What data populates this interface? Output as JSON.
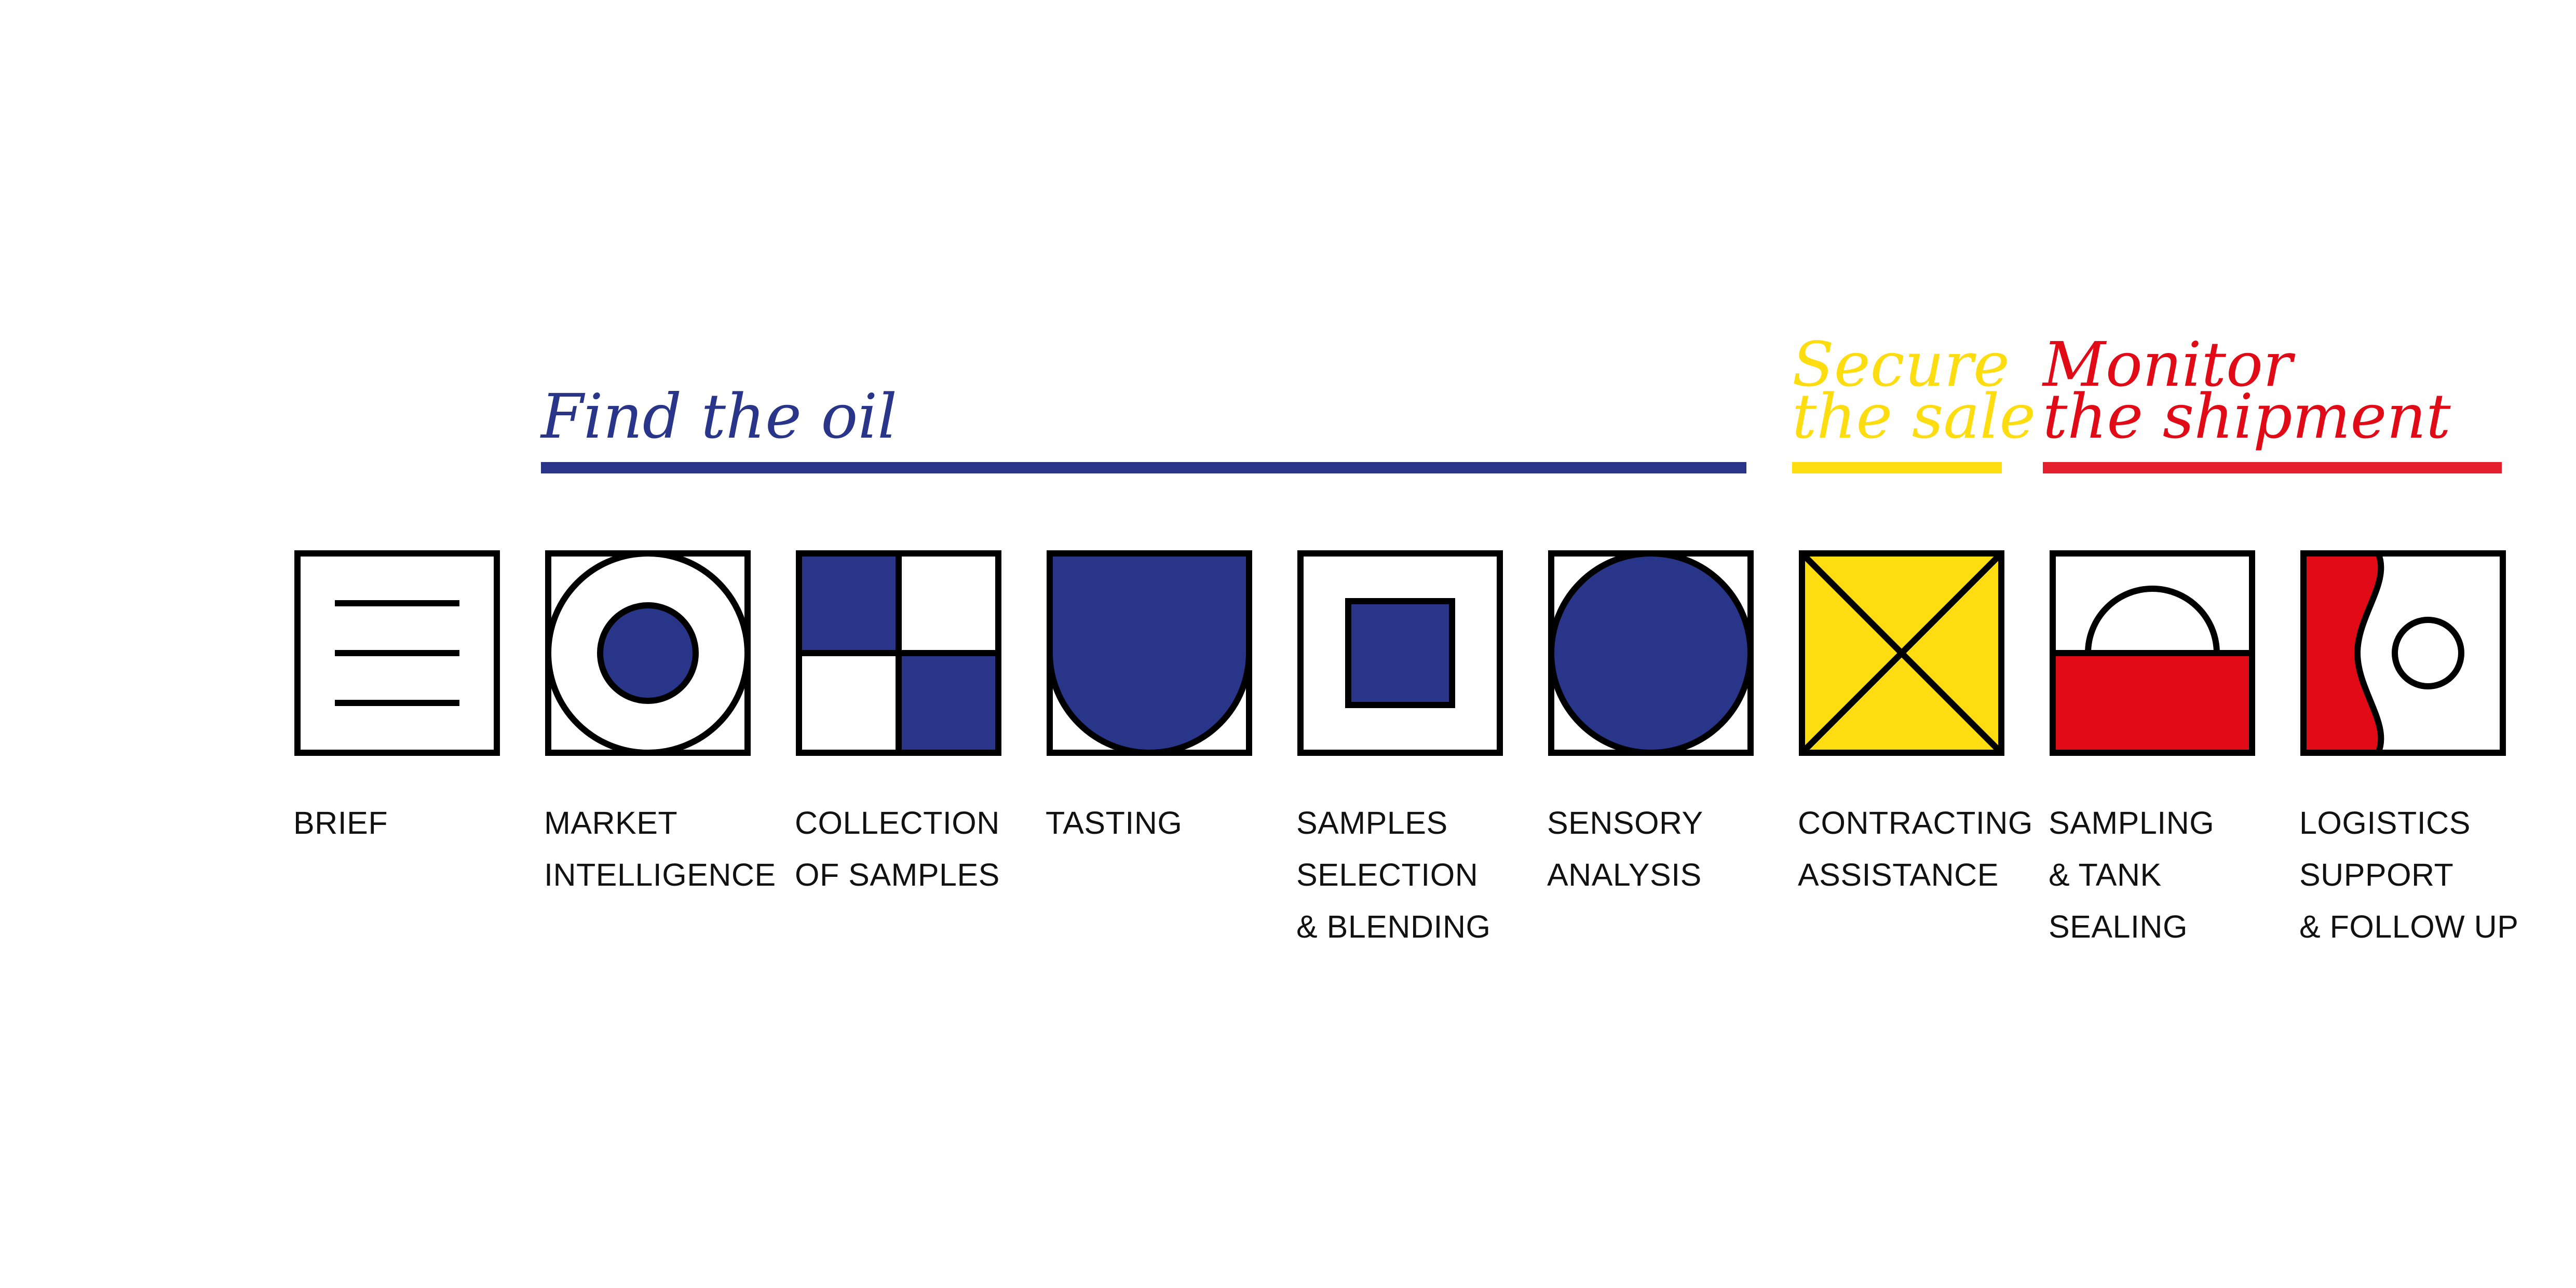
{
  "colors": {
    "blue": "#283589",
    "yellow": "#fddc10",
    "red": "#e10a17",
    "red_bar": "#e4202e",
    "black": "#000000",
    "white": "#ffffff"
  },
  "phases": [
    {
      "id": "find",
      "title_lines": [
        "Find the oil"
      ],
      "color": "#283589"
    },
    {
      "id": "secure",
      "title_lines": [
        "Secure",
        "the sale"
      ],
      "color": "#fddc10"
    },
    {
      "id": "monitor",
      "title_lines": [
        "Monitor",
        "the shipment"
      ],
      "color": "#e10a17"
    }
  ],
  "steps": [
    {
      "id": "brief",
      "icon": "brief-lines-icon",
      "label_lines": [
        "BRIEF"
      ]
    },
    {
      "id": "market-intelligence",
      "icon": "ring-target-icon",
      "label_lines": [
        "MARKET",
        "INTELLIGENCE"
      ]
    },
    {
      "id": "collection-of-samples",
      "icon": "checkerboard-icon",
      "label_lines": [
        "COLLECTION",
        "OF SAMPLES"
      ]
    },
    {
      "id": "tasting",
      "icon": "cup-shape-icon",
      "label_lines": [
        "TASTING"
      ]
    },
    {
      "id": "samples-selection",
      "icon": "inner-square-icon",
      "label_lines": [
        "SAMPLES",
        "SELECTION",
        "& BLENDING"
      ]
    },
    {
      "id": "sensory-analysis",
      "icon": "full-circle-icon",
      "label_lines": [
        "SENSORY",
        "ANALYSIS"
      ]
    },
    {
      "id": "contracting-assistance",
      "icon": "cross-x-icon",
      "label_lines": [
        "CONTRACTING",
        "ASSISTANCE"
      ]
    },
    {
      "id": "sampling-tank-sealing",
      "icon": "tank-seal-icon",
      "label_lines": [
        "SAMPLING",
        "& TANK",
        "SEALING"
      ]
    },
    {
      "id": "logistics-support",
      "icon": "wave-dot-icon",
      "label_lines": [
        "LOGISTICS",
        "SUPPORT",
        "& FOLLOW UP"
      ]
    }
  ]
}
